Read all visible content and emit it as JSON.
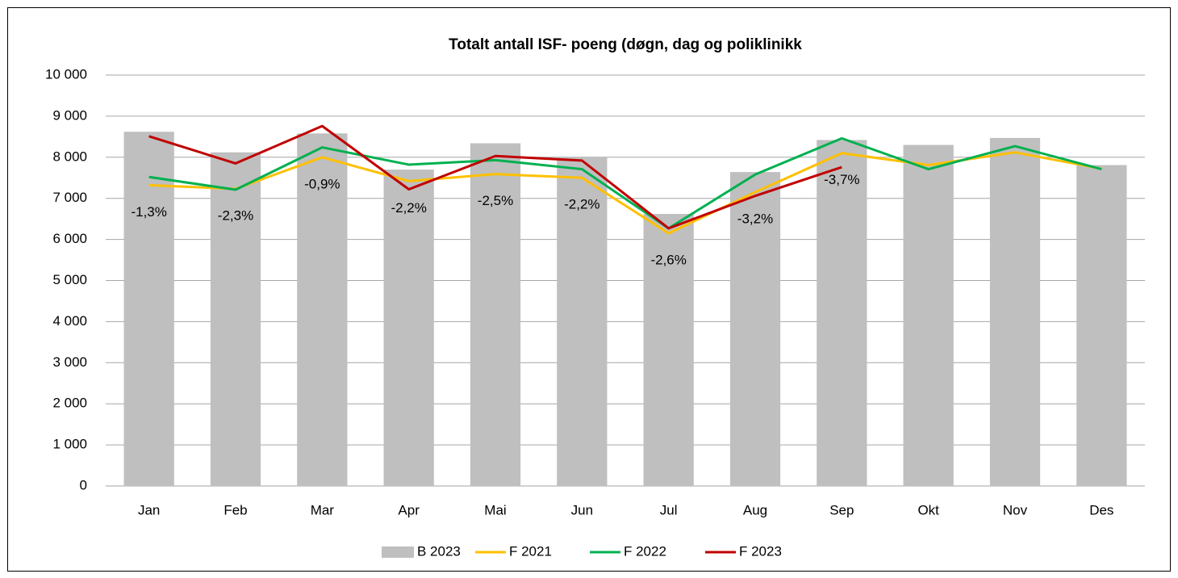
{
  "chart_data": {
    "type": "bar-line",
    "title": "Totalt antall ISF- poeng (døgn, dag og poliklinikk",
    "categories": [
      "Jan",
      "Feb",
      "Mar",
      "Apr",
      "Mai",
      "Jun",
      "Jul",
      "Aug",
      "Sep",
      "Okt",
      "Nov",
      "Des"
    ],
    "series": [
      {
        "name": "B 2023",
        "type": "bar",
        "color": "#bfbfbf",
        "values": [
          8620,
          8120,
          8580,
          7700,
          8340,
          8000,
          6620,
          7640,
          8420,
          8300,
          8470,
          7810
        ]
      },
      {
        "name": "F 2021",
        "type": "line",
        "color": "#ffc000",
        "values": [
          7320,
          7230,
          8000,
          7420,
          7590,
          7500,
          6150,
          7150,
          8100,
          7810,
          8120,
          7720
        ],
        "value_labels": [
          "-1,3%",
          "-2,3%",
          "-0,9%",
          "-2,2%",
          "-2,5%",
          "-2,2%",
          "-2,6%",
          "-3,2%",
          "-3,7%",
          null,
          null,
          null
        ]
      },
      {
        "name": "F 2022",
        "type": "line",
        "color": "#00b050",
        "values": [
          7520,
          7210,
          8240,
          7820,
          7930,
          7710,
          6270,
          7580,
          8460,
          7710,
          8270,
          7710
        ]
      },
      {
        "name": "F 2023",
        "type": "line",
        "color": "#c00000",
        "values": [
          8510,
          7850,
          8760,
          7220,
          8030,
          7920,
          6270,
          7060,
          7760,
          null,
          null,
          null
        ]
      }
    ],
    "ylim": [
      0,
      10000
    ],
    "yticks": [
      0,
      {
        "value": 1000,
        "label": "1 000"
      },
      {
        "value": 2000,
        "label": "2 000"
      },
      {
        "value": 3000,
        "label": "3 000"
      },
      {
        "value": 4000,
        "label": "4 000"
      },
      {
        "value": 5000,
        "label": "5 000"
      },
      {
        "value": 6000,
        "label": "6 000"
      },
      {
        "value": 7000,
        "label": "7 000"
      },
      {
        "value": 8000,
        "label": "8 000"
      },
      {
        "value": 9000,
        "label": "9 000"
      },
      {
        "value": 10000,
        "label": "10 000"
      }
    ],
    "grid": true,
    "legend": "bottom"
  }
}
